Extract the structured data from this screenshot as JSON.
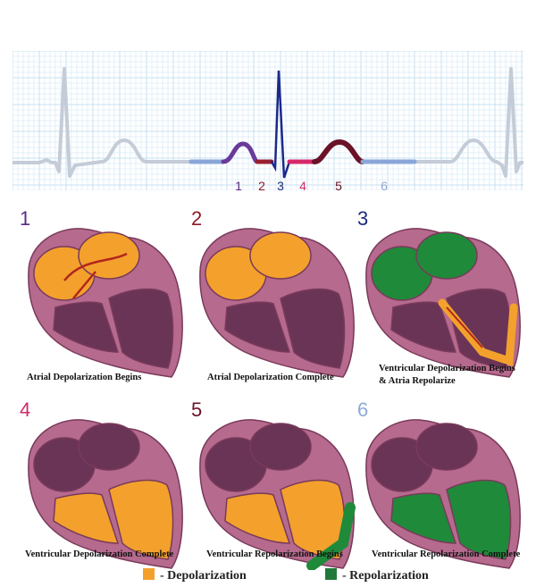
{
  "ecg": {
    "markers": [
      {
        "label": "1",
        "color": "#5a2a86"
      },
      {
        "label": "2",
        "color": "#8a1a2a"
      },
      {
        "label": "3",
        "color": "#1c2a7a"
      },
      {
        "label": "4",
        "color": "#cf2a6a"
      },
      {
        "label": "5",
        "color": "#6a1228"
      },
      {
        "label": "6",
        "color": "#8faad6"
      }
    ]
  },
  "panels": [
    {
      "number": "1",
      "number_color": "#5a2a86",
      "caption": [
        "Atrial Depolarization Begins"
      ]
    },
    {
      "number": "2",
      "number_color": "#8a1a2a",
      "caption": [
        "Atrial Depolarization Complete"
      ]
    },
    {
      "number": "3",
      "number_color": "#1c2a7a",
      "caption": [
        "Ventricular Depolarization Begins",
        "& Atria Repolarize"
      ]
    },
    {
      "number": "4",
      "number_color": "#cf2a6a",
      "caption": [
        "Ventricular Depolarization Complete"
      ]
    },
    {
      "number": "5",
      "number_color": "#6a1228",
      "caption": [
        "Ventricular Repolarization Begins"
      ]
    },
    {
      "number": "6",
      "number_color": "#8faad6",
      "caption": [
        "Ventricular Repolarization Complete"
      ]
    }
  ],
  "legend": {
    "depolarization": {
      "label": "- Depolarization",
      "color": "#f3a12c"
    },
    "repolarization": {
      "label": "- Repolarization",
      "color": "#1f7a3a"
    }
  },
  "colors": {
    "heart_outer": "#b56a8e",
    "heart_inner": "#6a3456",
    "depol": "#f3a12c",
    "repol": "#1f8a3a",
    "ecg_grid": "#cfe6f4",
    "ecg_baseline": "#c4ccd8"
  }
}
